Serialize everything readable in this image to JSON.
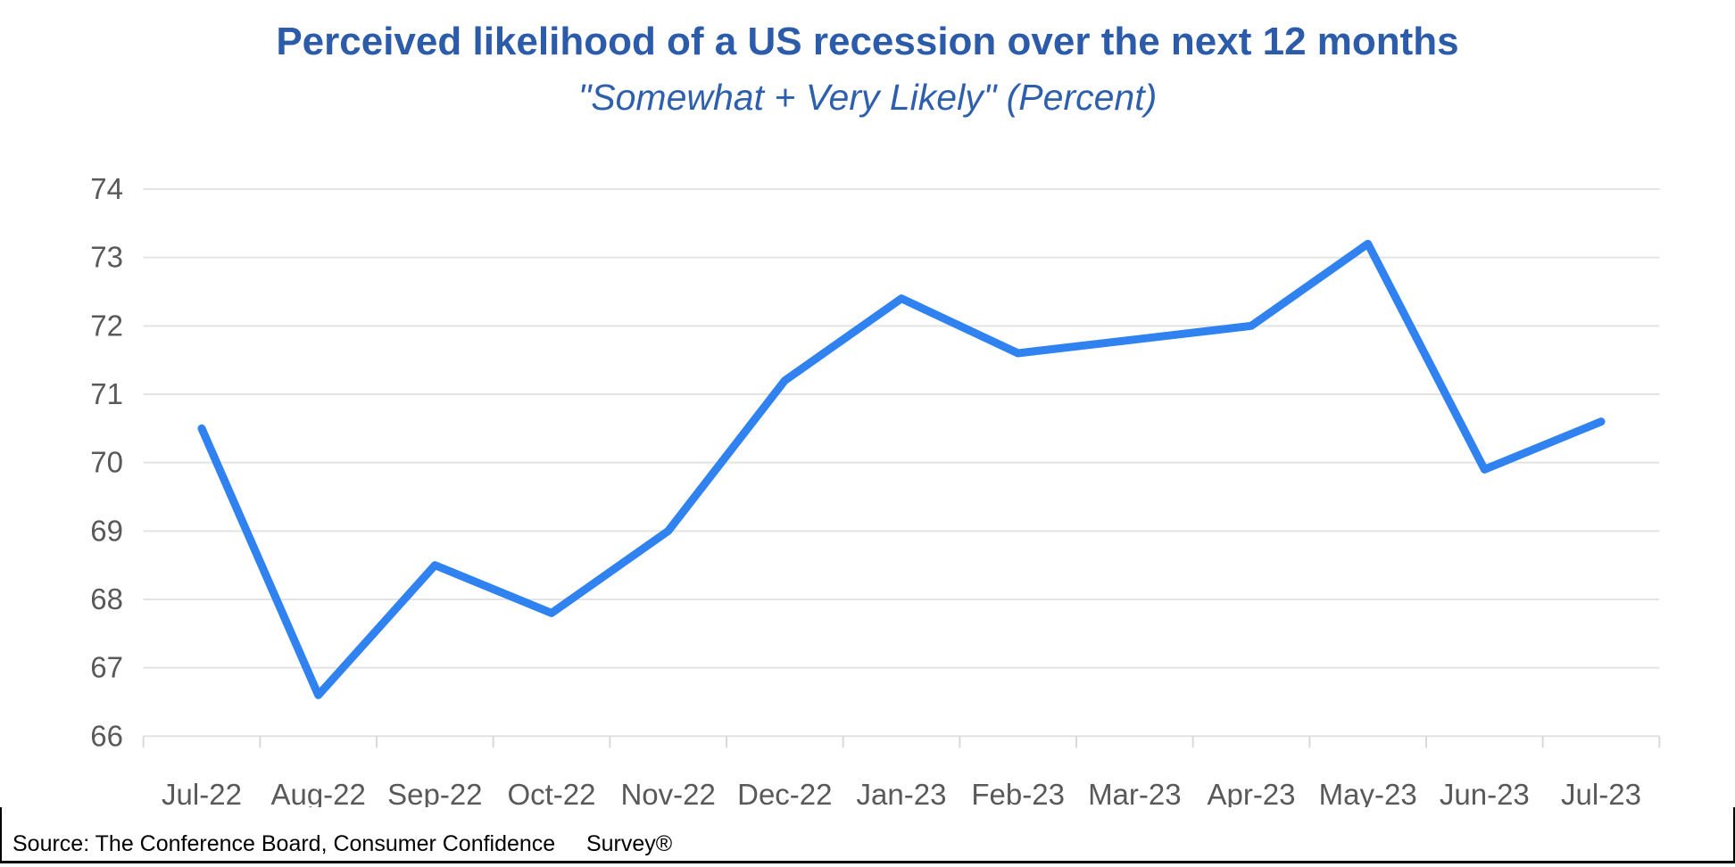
{
  "header": {
    "title": "Perceived likelihood of a US recession over the next 12 months",
    "subtitle": "\"Somewhat + Very Likely\" (Percent)"
  },
  "chart_data": {
    "type": "line",
    "title": "Perceived likelihood of a US recession over the next 12 months",
    "subtitle": "\"Somewhat + Very Likely\" (Percent)",
    "categories": [
      "Jul-22",
      "Aug-22",
      "Sep-22",
      "Oct-22",
      "Nov-22",
      "Dec-22",
      "Jan-23",
      "Feb-23",
      "Mar-23",
      "Apr-23",
      "May-23",
      "Jun-23",
      "Jul-23"
    ],
    "series": [
      {
        "name": "Somewhat + Very Likely (Percent)",
        "values": [
          70.5,
          66.6,
          68.5,
          67.8,
          69.0,
          71.2,
          72.4,
          71.6,
          71.8,
          72.0,
          73.2,
          69.9,
          70.6
        ]
      }
    ],
    "ylim": [
      66,
      74
    ],
    "yticks": [
      66,
      67,
      68,
      69,
      70,
      71,
      72,
      73,
      74
    ],
    "grid": "horizontal",
    "legend": "none",
    "line_color": "#2f82f0",
    "gridline_color": "#e3e3e3",
    "tick_color": "#d9d9d9",
    "tick_label_color": "#595959",
    "title_color": "#2b5ba9"
  },
  "footer": {
    "source_text": "Source: The Conference Board, Consumer Confidence     Survey®"
  }
}
